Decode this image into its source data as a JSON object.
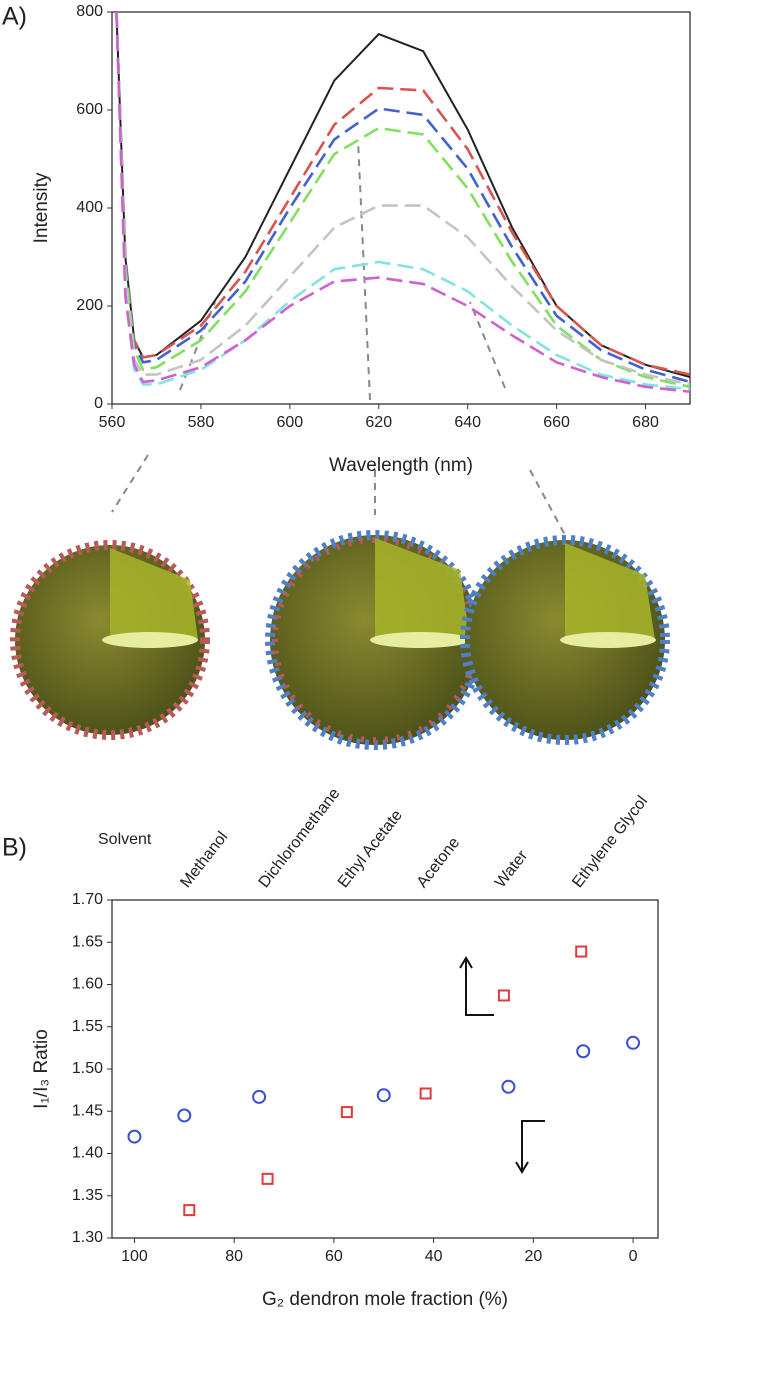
{
  "chart_data": [
    {
      "type": "line",
      "panel": "A)",
      "xlabel": "Wavelength (nm)",
      "ylabel": "Intensity",
      "xlim": [
        560,
        690
      ],
      "ylim": [
        0,
        800
      ],
      "xticks": [
        560,
        580,
        600,
        620,
        640,
        660,
        680
      ],
      "yticks": [
        0,
        200,
        400,
        600,
        800
      ],
      "grid": false,
      "x": [
        561,
        563,
        565,
        567,
        570,
        580,
        590,
        600,
        610,
        620,
        630,
        640,
        650,
        660,
        670,
        680,
        690
      ],
      "series": [
        {
          "color": "#222222",
          "dash": false,
          "values": [
            800,
            300,
            130,
            95,
            100,
            170,
            300,
            480,
            660,
            755,
            720,
            560,
            360,
            200,
            120,
            80,
            55
          ]
        },
        {
          "color": "#d9534f",
          "dash": true,
          "values": [
            800,
            300,
            130,
            95,
            100,
            160,
            270,
            420,
            570,
            645,
            640,
            520,
            350,
            200,
            120,
            80,
            60
          ]
        },
        {
          "color": "#4062d0",
          "dash": true,
          "values": [
            800,
            290,
            120,
            85,
            90,
            150,
            250,
            400,
            540,
            603,
            590,
            480,
            320,
            180,
            110,
            70,
            45
          ]
        },
        {
          "color": "#80e060",
          "dash": true,
          "values": [
            800,
            280,
            110,
            70,
            75,
            130,
            230,
            370,
            510,
            563,
            550,
            440,
            290,
            160,
            90,
            55,
            35
          ]
        },
        {
          "color": "#c4c4c4",
          "dash": true,
          "values": [
            800,
            250,
            90,
            60,
            60,
            90,
            160,
            260,
            360,
            405,
            405,
            340,
            240,
            150,
            90,
            60,
            40
          ]
        },
        {
          "color": "#80e4e0",
          "dash": true,
          "values": [
            800,
            230,
            70,
            40,
            40,
            70,
            130,
            210,
            275,
            290,
            275,
            230,
            160,
            100,
            60,
            40,
            30
          ]
        },
        {
          "color": "#d060d0",
          "dash": true,
          "values": [
            800,
            220,
            80,
            45,
            48,
            75,
            130,
            200,
            250,
            258,
            245,
            200,
            140,
            85,
            55,
            35,
            25
          ]
        }
      ]
    },
    {
      "type": "scatter",
      "panel": "B)",
      "xlabel": "G₂ dendron mole fraction (%)",
      "ylabel": "I₁/I₃ Ratio",
      "xlim": [
        104.5,
        -5
      ],
      "ylim": [
        1.3,
        1.7
      ],
      "xticks": [
        100,
        80,
        60,
        40,
        20,
        0
      ],
      "yticks": [
        {
          "value": 1.3,
          "label": "1.30"
        },
        1.35,
        {
          "value": 1.4,
          "label": "1.40"
        },
        1.45,
        {
          "value": 1.5,
          "label": "1.50"
        },
        1.55,
        {
          "value": 1.6,
          "label": "1.60"
        },
        1.65,
        {
          "value": 1.7,
          "label": "1.70"
        }
      ],
      "grid": false,
      "top_axis": {
        "label": "Solvent",
        "categories": [
          "Methanol",
          "Dichloromethane",
          "Ethyl Acetate",
          "Acetone",
          "Water",
          "Ethylene Glycol"
        ]
      },
      "series": [
        {
          "color": "#3a4fd8",
          "marker": "circle",
          "x": [
            100,
            90,
            75,
            50,
            25,
            10,
            0
          ],
          "values": [
            1.42,
            1.445,
            1.467,
            1.469,
            1.479,
            1.521,
            1.531
          ]
        },
        {
          "color": "#e03a3a",
          "marker": "square",
          "x": [
            89,
            73.3,
            57.4,
            41.6,
            25.9,
            10.4
          ],
          "values": [
            1.333,
            1.37,
            1.449,
            1.471,
            1.587,
            1.639
          ]
        }
      ]
    }
  ]
}
